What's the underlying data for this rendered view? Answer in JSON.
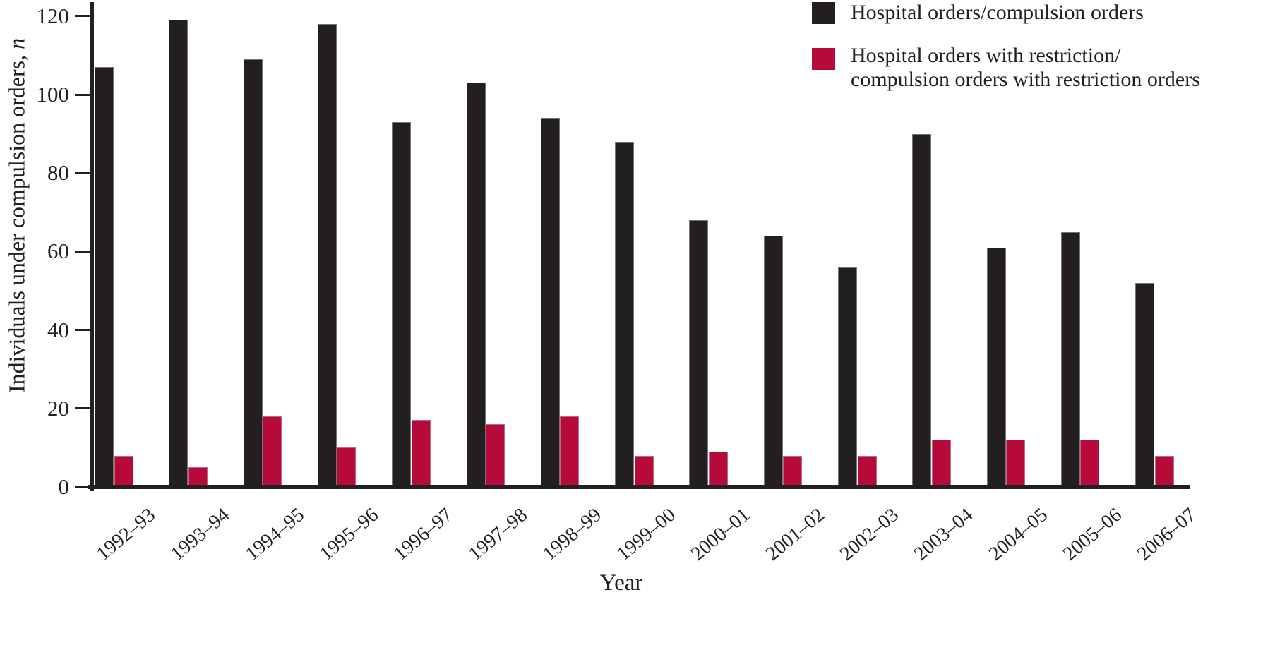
{
  "figure": {
    "y_axis": {
      "label_main": "Individuals under compulsion orders, ",
      "label_italic_suffix": "n"
    },
    "x_axis": {
      "label": "Year"
    },
    "legend": {
      "items": [
        {
          "swatch_color": "#231f20",
          "lines": [
            "Hospital orders/compulsion orders"
          ]
        },
        {
          "swatch_color": "#b60b3a",
          "lines": [
            "Hospital orders with restriction/",
            "compulsion orders with restriction orders"
          ]
        }
      ]
    }
  },
  "chart_data": {
    "type": "bar",
    "title": "",
    "xlabel": "Year",
    "ylabel": "Individuals under compulsion orders, n",
    "ylim": [
      0,
      120
    ],
    "yticks": [
      0,
      20,
      40,
      60,
      80,
      100,
      120
    ],
    "grid": false,
    "legend_position": "top-right",
    "categories": [
      "1992–93",
      "1993–94",
      "1994–95",
      "1995–96",
      "1996–97",
      "1997–98",
      "1998–99",
      "1999–00",
      "2000–01",
      "2001–02",
      "2002–03",
      "2003–04",
      "2004–05",
      "2005–06",
      "2006–07"
    ],
    "series": [
      {
        "name": "Hospital orders/compulsion orders",
        "color": "#231f20",
        "values": [
          107,
          119,
          109,
          118,
          93,
          103,
          94,
          88,
          68,
          64,
          56,
          90,
          61,
          65,
          52
        ]
      },
      {
        "name": "Hospital orders with restriction/compulsion orders with restriction orders",
        "color": "#b60b3a",
        "values": [
          8,
          5,
          18,
          10,
          17,
          16,
          18,
          8,
          9,
          8,
          8,
          12,
          12,
          12,
          8
        ]
      }
    ]
  }
}
